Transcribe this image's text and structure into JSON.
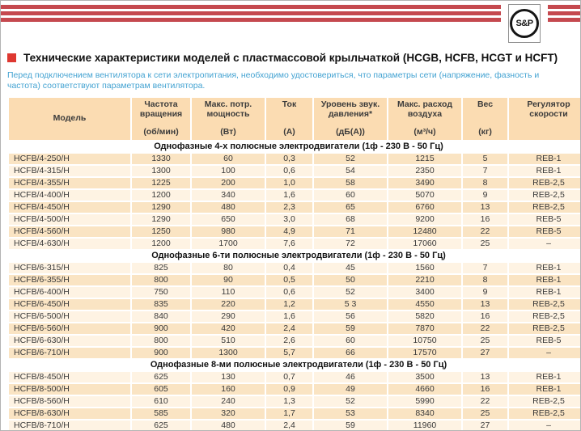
{
  "header": {
    "logo_text": "S&P"
  },
  "title": {
    "text": "Технические характеристики моделей с пластмассовой крыльчаткой (HCGB, HCFB, HCGT и HCFT)"
  },
  "note": {
    "text": "Перед подключением вентилятора к сети электропитания, необходимо удостовериться, что параметры сети (напряжение, фазность и частота) соответствуют параметрам вентилятора."
  },
  "table": {
    "columns": [
      {
        "label": "Модель",
        "unit": ""
      },
      {
        "label": "Частота вращения",
        "unit": "(об/мин)"
      },
      {
        "label": "Макс. потр. мощность",
        "unit": "(Вт)"
      },
      {
        "label": "Ток",
        "unit": "(А)"
      },
      {
        "label": "Уровень звук. давления*",
        "unit": "(дБ(А))"
      },
      {
        "label": "Макс. расход воздуха",
        "unit": "(м³/ч)"
      },
      {
        "label": "Вес",
        "unit": "(кг)"
      },
      {
        "label": "Регулятор скорости",
        "unit": ""
      }
    ],
    "sections": [
      {
        "title": "Однофазные 4-х полюсные электродвигатели (1ф - 230 В - 50 Гц)",
        "zebra_start": "dark",
        "rows": [
          [
            "HCFB/4-250/H",
            "1330",
            "60",
            "0,3",
            "52",
            "1215",
            "5",
            "REB-1"
          ],
          [
            "HCFB/4-315/H",
            "1300",
            "100",
            "0,6",
            "54",
            "2350",
            "7",
            "REB-1"
          ],
          [
            "HCFB/4-355/H",
            "1225",
            "200",
            "1,0",
            "58",
            "3490",
            "8",
            "REB-2,5"
          ],
          [
            "HCFB/4-400/H",
            "1200",
            "340",
            "1,6",
            "60",
            "5070",
            "9",
            "REB-2,5"
          ],
          [
            "HCFB/4-450/H",
            "1290",
            "480",
            "2,3",
            "65",
            "6760",
            "13",
            "REB-2,5"
          ],
          [
            "HCFB/4-500/H",
            "1290",
            "650",
            "3,0",
            "68",
            "9200",
            "16",
            "REB-5"
          ],
          [
            "HCFB/4-560/H",
            "1250",
            "980",
            "4,9",
            "71",
            "12480",
            "22",
            "REB-5"
          ],
          [
            "HCFB/4-630/H",
            "1200",
            "1700",
            "7,6",
            "72",
            "17060",
            "25",
            "–"
          ]
        ]
      },
      {
        "title": "Однофазные 6-ти полюсные электродвигатели (1ф - 230 В - 50 Гц)",
        "zebra_start": "light",
        "rows": [
          [
            "HCFB/6-315/H",
            "825",
            "80",
            "0,4",
            "45",
            "1560",
            "7",
            "REB-1"
          ],
          [
            "HCFB/6-355/H",
            "800",
            "90",
            "0,5",
            "50",
            "2210",
            "8",
            "REB-1"
          ],
          [
            "HCFB/6-400/H",
            "750",
            "110",
            "0,6",
            "52",
            "3400",
            "9",
            "REB-1"
          ],
          [
            "HCFB/6-450/H",
            "835",
            "220",
            "1,2",
            "5 3",
            "4550",
            "13",
            "REB-2,5"
          ],
          [
            "HCFB/6-500/H",
            "840",
            "290",
            "1,6",
            "56",
            "5820",
            "16",
            "REB-2,5"
          ],
          [
            "HCFB/6-560/H",
            "900",
            "420",
            "2,4",
            "59",
            "7870",
            "22",
            "REB-2,5"
          ],
          [
            "HCFB/6-630/H",
            "800",
            "510",
            "2,6",
            "60",
            "10750",
            "25",
            "REB-5"
          ],
          [
            "HCFB/6-710/H",
            "900",
            "1300",
            "5,7",
            "66",
            "17570",
            "27",
            "–"
          ]
        ]
      },
      {
        "title": "Однофазные 8-ми полюсные электродвигатели (1ф - 230 В - 50 Гц)",
        "zebra_start": "light",
        "rows": [
          [
            "HCFB/8-450/H",
            "625",
            "130",
            "0,7",
            "46",
            "3500",
            "13",
            "REB-1"
          ],
          [
            "HCFB/8-500/H",
            "605",
            "160",
            "0,9",
            "49",
            "4660",
            "16",
            "REB-1"
          ],
          [
            "HCFB/8-560/H",
            "610",
            "240",
            "1,3",
            "52",
            "5990",
            "22",
            "REB-2,5"
          ],
          [
            "HCFB/8-630/H",
            "585",
            "320",
            "1,7",
            "53",
            "8340",
            "25",
            "REB-2,5"
          ],
          [
            "HCFB/8-710/H",
            "625",
            "480",
            "2,4",
            "59",
            "11960",
            "27",
            "–"
          ]
        ]
      }
    ]
  },
  "colors": {
    "stripe_red": "#C5494F",
    "bullet_red": "#DE3831",
    "note_blue": "#44A3D2",
    "header_peach": "#FBDCB2",
    "row_dark": "#FAE4C3",
    "row_light": "#FEF3E3"
  }
}
